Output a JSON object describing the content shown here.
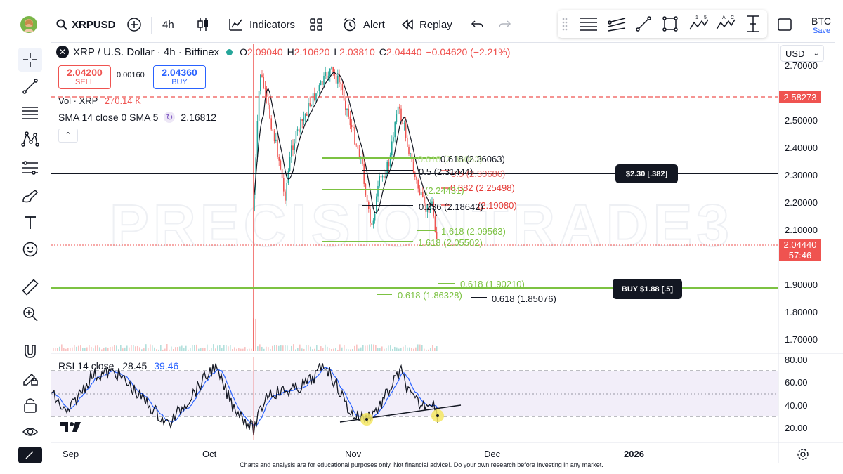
{
  "toolbar": {
    "symbol": "XRPUSD",
    "interval": "4h",
    "indicators_label": "Indicators",
    "alert_label": "Alert",
    "replay_label": "Replay",
    "right_cut": "BTC",
    "right_save": "Save"
  },
  "legend": {
    "title": "XRP / U.S. Dollar · 4h · Bitfinex",
    "o_label": "O",
    "o_val": "2.09040",
    "h_label": "H",
    "h_val": "2.10620",
    "l_label": "L",
    "l_val": "2.03810",
    "c_label": "C",
    "c_val": "2.04440",
    "change": "−0.04620 (−2.21%)",
    "sell_price": "2.04200",
    "sell_label": "SELL",
    "spread": "0.00160",
    "buy_price": "2.04360",
    "buy_label": "BUY",
    "vol_label": "Vol · XRP",
    "vol_val": "270.14 K",
    "sma_label": "SMA 14 close 0 SMA 5",
    "sma_val": "2.16812"
  },
  "currency": "USD",
  "watermark": "PRECISIONTRADE3",
  "price_axis": [
    "2.70000",
    "2.50000",
    "2.40000",
    "2.30000",
    "2.20000",
    "2.10000",
    "1.90000",
    "1.80000",
    "1.70000"
  ],
  "price_badges": {
    "red_level": "2.58273",
    "last_price": "2.04440",
    "countdown": "57:46"
  },
  "pills": {
    "resistance": "$2.30 [.382]",
    "buy": "BUY $1.88 [.5]"
  },
  "fib_labels": {
    "black_618": "0.618 (2.36063)",
    "black_05": "0.5 (2.31444)",
    "red_05": "0.5 (2.30686)",
    "red_382": "0.382 (2.25498)",
    "green_244": "(2.24431)",
    "black_236": "0.236 (2.18642)",
    "red_19080": "(2.19080)",
    "green_1618a": "1.618 (2.09563)",
    "green_1618b": "1.618 (2.05502)",
    "green_618a": "0.618 (1.90210)",
    "green_618b": "0.618 (1.86328)",
    "black_618b": "0.618 (1.85076)",
    "ghost_618": "0.618 (2.36063)"
  },
  "rsi": {
    "label": "RSI 14 close",
    "val1": "28.45",
    "val2": "39.46",
    "axis": [
      "80.00",
      "60.00",
      "40.00",
      "20.00"
    ]
  },
  "time_axis": [
    "Sep",
    "Oct",
    "Nov",
    "Dec",
    "2026"
  ],
  "footer": "Charts and analysis are for educational purposes only. Not financial advice!. Do your own research before investing in any market.",
  "colors": {
    "up": "#26a69a",
    "down": "#ef5350",
    "fib_green": "#7cc242",
    "fib_red": "#e53935",
    "rsi_blue": "#2962ff",
    "buy_blue": "#2962ff"
  },
  "icons": [
    "avatar",
    "search-icon",
    "plus-circle-icon",
    "candles-icon",
    "indicators-icon",
    "apps-grid-icon",
    "alarm-clock-icon",
    "replay-icon",
    "undo-icon",
    "redo-icon",
    "drag-handle-icon",
    "hlines-icon",
    "channel-icon",
    "trendline-icon",
    "rectangle-icon",
    "elliott-wave-icon",
    "abcd-pattern-icon",
    "long-position-icon",
    "layout-icon",
    "cursor-cross-icon",
    "line-tool-icon",
    "fib-tool-icon",
    "pattern-tool-icon",
    "fib-channel-icon",
    "brush-icon",
    "text-icon",
    "emoji-icon",
    "ruler-icon",
    "zoom-in-icon",
    "magnet-icon",
    "lock-draw-icon",
    "lock-icon",
    "eye-icon",
    "settings-icon",
    "tradingview-logo"
  ]
}
